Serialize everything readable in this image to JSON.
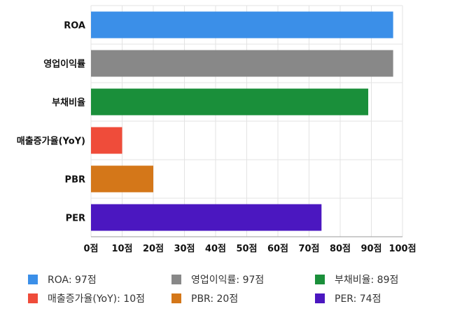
{
  "chart_data": {
    "type": "bar",
    "orientation": "horizontal",
    "categories": [
      "ROA",
      "영업이익률",
      "부채비율",
      "매출증가율(YoY)",
      "PBR",
      "PER"
    ],
    "values": [
      97,
      97,
      89,
      10,
      20,
      74
    ],
    "colors": [
      "#3b8fe8",
      "#888888",
      "#1a8f3a",
      "#ef4c3a",
      "#d47719",
      "#4b17c0"
    ],
    "xlim": [
      0,
      100
    ],
    "x_ticks": [
      0,
      10,
      20,
      30,
      40,
      50,
      60,
      70,
      80,
      90,
      100
    ],
    "tick_suffix": "점",
    "grid": true,
    "legend_placement": "bottom",
    "legend": [
      "ROA: 97점",
      "영업이익률: 97점",
      "부채비율: 89점",
      "매출증가율(YoY): 10점",
      "PBR: 20점",
      "PER: 74점"
    ]
  }
}
